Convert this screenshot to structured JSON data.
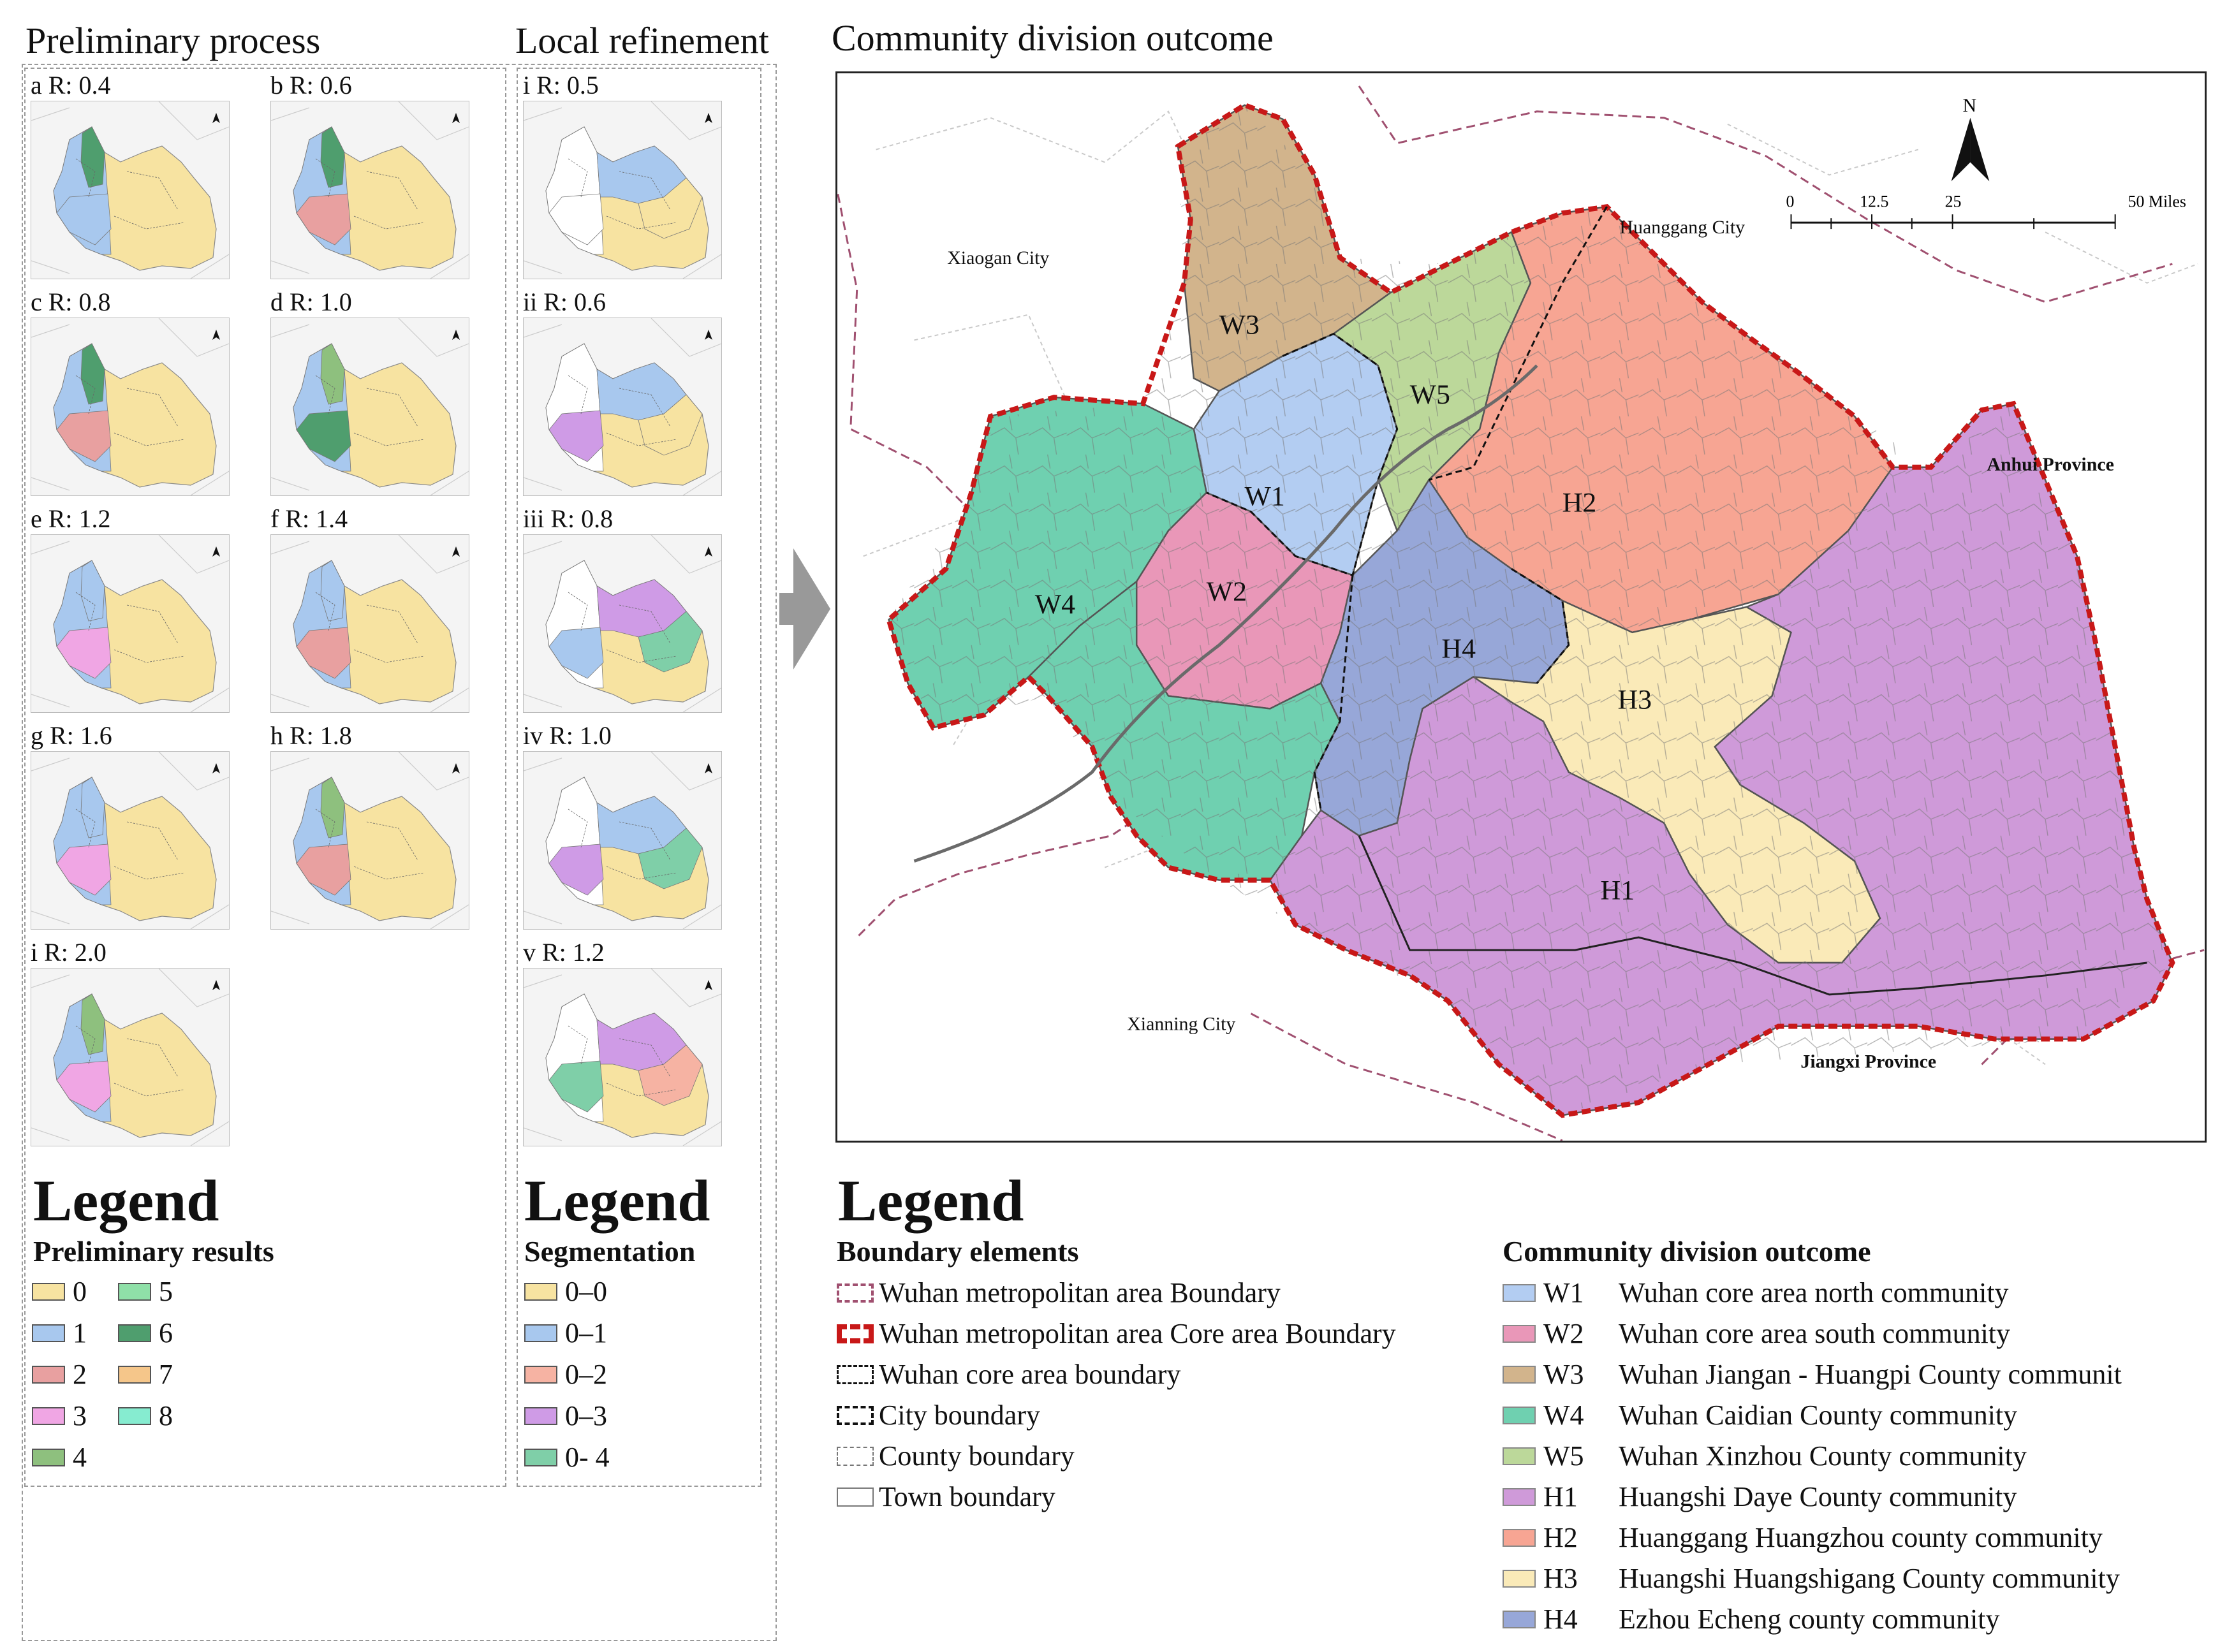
{
  "sections": {
    "preliminary_title": "Preliminary process",
    "local_title": "Local refinement",
    "outcome_title": "Community division outcome"
  },
  "preliminary_panels": [
    {
      "label": "a R: 0.4"
    },
    {
      "label": "b R: 0.6"
    },
    {
      "label": "c R: 0.8"
    },
    {
      "label": "d R: 1.0"
    },
    {
      "label": "e R: 1.2"
    },
    {
      "label": "f R: 1.4"
    },
    {
      "label": "g R: 1.6"
    },
    {
      "label": "h R: 1.8"
    },
    {
      "label": "i R: 2.0"
    }
  ],
  "local_panels": [
    {
      "label": "i R: 0.5"
    },
    {
      "label": "ii R: 0.6"
    },
    {
      "label": "iii R: 0.8"
    },
    {
      "label": "iv R: 1.0"
    },
    {
      "label": "v R: 1.2"
    }
  ],
  "legend_preliminary": {
    "title": "Legend",
    "subtitle": "Preliminary results",
    "items": [
      {
        "label": "0",
        "color": "#f7e3a1"
      },
      {
        "label": "5",
        "color": "#8fe0a8"
      },
      {
        "label": "1",
        "color": "#a8c8ee"
      },
      {
        "label": "6",
        "color": "#4f9e6e"
      },
      {
        "label": "2",
        "color": "#e8a0a0"
      },
      {
        "label": "7",
        "color": "#f5c68a"
      },
      {
        "label": "3",
        "color": "#f0a6e4"
      },
      {
        "label": "8",
        "color": "#86ecd0"
      },
      {
        "label": "4",
        "color": "#8ec07e"
      }
    ]
  },
  "legend_segmentation": {
    "title": "Legend",
    "subtitle": "Segmentation",
    "items": [
      {
        "label": "0–0",
        "color": "#f7e3a1"
      },
      {
        "label": "0–1",
        "color": "#a8c8ee"
      },
      {
        "label": "0–2",
        "color": "#f6b3a3"
      },
      {
        "label": "0–3",
        "color": "#cf9be6"
      },
      {
        "label": "0- 4",
        "color": "#7fcfa8"
      }
    ]
  },
  "main_map": {
    "north_label": "N",
    "scale_labels": [
      "0",
      "12.5",
      "25",
      "50 Miles"
    ],
    "places": [
      "Xiaogan City",
      "Huanggang City",
      "Anhui Province",
      "Xianning City",
      "Jiangxi Province"
    ],
    "communities": [
      "W1",
      "W2",
      "W3",
      "W4",
      "W5",
      "H1",
      "H2",
      "H3",
      "H4"
    ],
    "colors": {
      "W1": "#b3cdf2",
      "W2": "#e997b8",
      "W3": "#d2b48c",
      "W4": "#6fd0b0",
      "W5": "#bcd89a",
      "H1": "#cf9ad9",
      "H2": "#f7a593",
      "H3": "#faeab8",
      "H4": "#97a7d8",
      "core_boundary": "#c81818"
    }
  },
  "legend_main": {
    "title": "Legend",
    "boundary_title": "Boundary elements",
    "boundary_items": [
      {
        "label": "Wuhan metropolitan area Boundary"
      },
      {
        "label": "Wuhan metropolitan area Core area Boundary"
      },
      {
        "label": "Wuhan core area boundary"
      },
      {
        "label": "City boundary"
      },
      {
        "label": "County boundary"
      },
      {
        "label": "Town boundary"
      }
    ],
    "community_title": "Community division outcome",
    "community_items": [
      {
        "code": "W1",
        "label": "Wuhan core area north community",
        "color": "#b3cdf2"
      },
      {
        "code": "W2",
        "label": "Wuhan core area south community",
        "color": "#e997b8"
      },
      {
        "code": "W3",
        "label": "Wuhan Jiangan - Huangpi County communit",
        "color": "#d2b48c"
      },
      {
        "code": "W4",
        "label": "Wuhan Caidian County community",
        "color": "#6fd0b0"
      },
      {
        "code": "W5",
        "label": "Wuhan Xinzhou County community",
        "color": "#bcd89a"
      },
      {
        "code": "H1",
        "label": "Huangshi Daye County community",
        "color": "#cf9ad9"
      },
      {
        "code": "H2",
        "label": "Huanggang Huangzhou county community",
        "color": "#f7a593"
      },
      {
        "code": "H3",
        "label": "Huangshi Huangshigang County community",
        "color": "#faeab8"
      },
      {
        "code": "H4",
        "label": "Ezhou Echeng county community",
        "color": "#97a7d8"
      }
    ]
  }
}
